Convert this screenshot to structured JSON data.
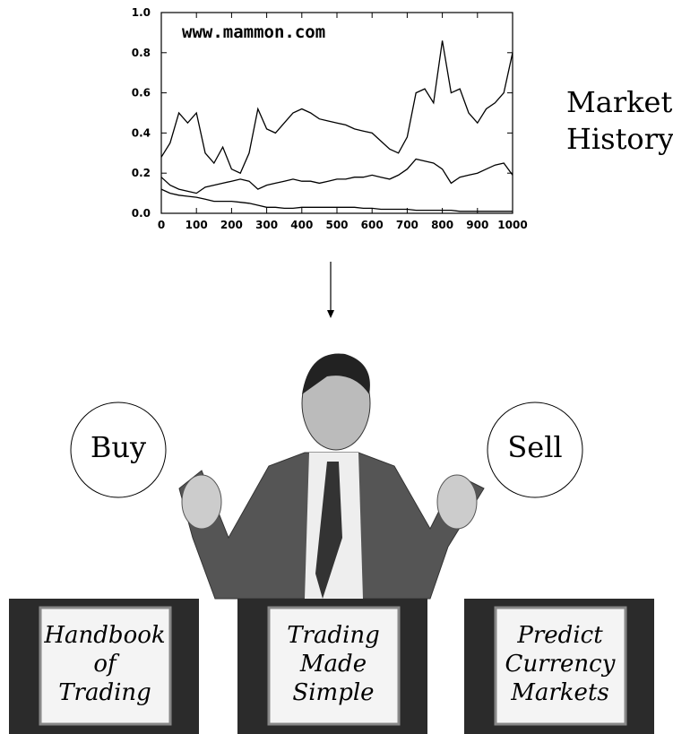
{
  "chart_data": {
    "type": "line",
    "annotation": "www.mammon.com",
    "x": [
      0,
      25,
      50,
      75,
      100,
      125,
      150,
      175,
      200,
      225,
      250,
      275,
      300,
      325,
      350,
      375,
      400,
      425,
      450,
      475,
      500,
      525,
      550,
      575,
      600,
      625,
      650,
      675,
      700,
      725,
      750,
      775,
      800,
      825,
      850,
      875,
      900,
      925,
      950,
      975,
      1000
    ],
    "series": [
      {
        "color": "#000000",
        "values": [
          0.28,
          0.35,
          0.5,
          0.45,
          0.5,
          0.3,
          0.25,
          0.33,
          0.22,
          0.2,
          0.3,
          0.52,
          0.42,
          0.4,
          0.45,
          0.5,
          0.52,
          0.5,
          0.47,
          0.46,
          0.45,
          0.44,
          0.42,
          0.41,
          0.4,
          0.36,
          0.32,
          0.3,
          0.38,
          0.6,
          0.62,
          0.55,
          0.86,
          0.6,
          0.62,
          0.5,
          0.45,
          0.52,
          0.55,
          0.6,
          0.8
        ]
      },
      {
        "color": "#000000",
        "values": [
          0.18,
          0.14,
          0.12,
          0.11,
          0.1,
          0.13,
          0.14,
          0.15,
          0.16,
          0.17,
          0.16,
          0.12,
          0.14,
          0.15,
          0.16,
          0.17,
          0.16,
          0.16,
          0.15,
          0.16,
          0.17,
          0.17,
          0.18,
          0.18,
          0.19,
          0.18,
          0.17,
          0.19,
          0.22,
          0.27,
          0.26,
          0.25,
          0.22,
          0.15,
          0.18,
          0.19,
          0.2,
          0.22,
          0.24,
          0.25,
          0.19
        ]
      },
      {
        "color": "#000000",
        "values": [
          0.12,
          0.1,
          0.09,
          0.085,
          0.08,
          0.07,
          0.06,
          0.06,
          0.06,
          0.055,
          0.05,
          0.04,
          0.03,
          0.03,
          0.025,
          0.025,
          0.03,
          0.03,
          0.03,
          0.03,
          0.03,
          0.03,
          0.03,
          0.025,
          0.025,
          0.02,
          0.02,
          0.02,
          0.02,
          0.015,
          0.015,
          0.015,
          0.015,
          0.015,
          0.01,
          0.01,
          0.01,
          0.01,
          0.01,
          0.01,
          0.01
        ]
      }
    ],
    "xlim": [
      0,
      1000
    ],
    "ylim": [
      0,
      1
    ],
    "xticks": [
      0,
      100,
      200,
      300,
      400,
      500,
      600,
      700,
      800,
      900,
      1000
    ],
    "yticks": [
      {
        "value": 0,
        "label": "0.0"
      },
      0.2,
      0.4,
      0.6,
      0.8,
      {
        "value": 1,
        "label": "1.0"
      }
    ]
  },
  "market_label": [
    "Market",
    "History"
  ],
  "actions": [
    "Buy",
    "Sell"
  ],
  "books": [
    [
      "Handbook",
      "of",
      "Trading"
    ],
    [
      "Trading",
      "Made",
      "Simple"
    ],
    [
      "Predict",
      "Currency",
      "Markets"
    ]
  ]
}
